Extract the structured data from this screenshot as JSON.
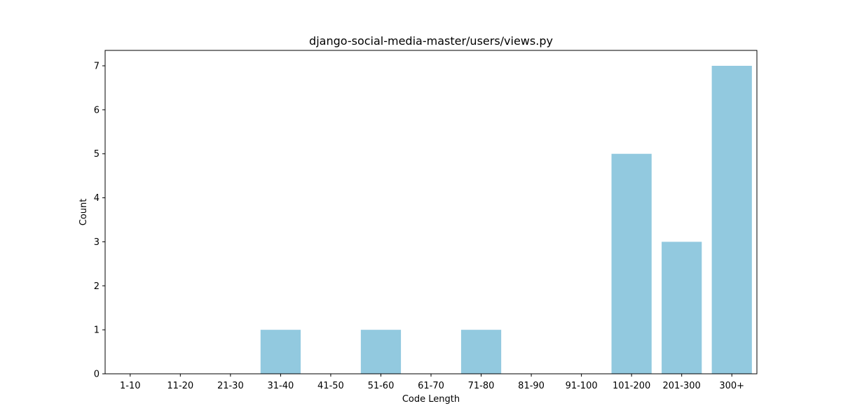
{
  "chart_data": {
    "type": "bar",
    "title": "django-social-media-master/users/views.py",
    "xlabel": "Code Length",
    "ylabel": "Count",
    "categories": [
      "1-10",
      "11-20",
      "21-30",
      "31-40",
      "41-50",
      "51-60",
      "61-70",
      "71-80",
      "81-90",
      "91-100",
      "101-200",
      "201-300",
      "300+"
    ],
    "values": [
      0,
      0,
      0,
      1,
      0,
      1,
      0,
      1,
      0,
      0,
      5,
      3,
      7
    ],
    "ylim": [
      0,
      7.35
    ],
    "yticks": [
      0,
      1,
      2,
      3,
      4,
      5,
      6,
      7
    ],
    "bar_color": "#92c9df",
    "grid": false,
    "legend": "none"
  }
}
